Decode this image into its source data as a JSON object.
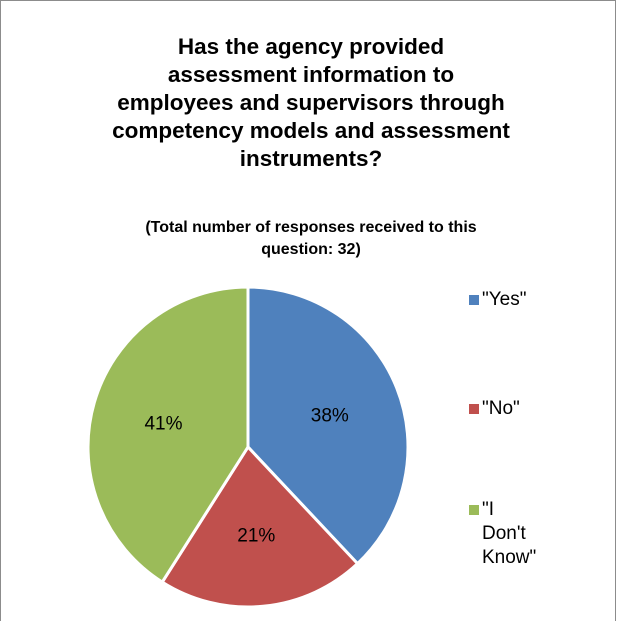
{
  "chart_data": {
    "type": "pie",
    "title": "Has the agency provided\nassessment information to\nemployees and supervisors through\ncompetency models and assessment\ninstruments?",
    "subtitle": "(Total number of responses received to this\nquestion:  32)",
    "categories": [
      "\"Yes\"",
      "\"No\"",
      "\"I Don't\nKnow\""
    ],
    "values": [
      38,
      21,
      41
    ],
    "labels": [
      "38%",
      "21%",
      "41%"
    ],
    "colors": [
      "#4F81BD",
      "#C0504D",
      "#9BBB59"
    ],
    "legend_position": "right"
  }
}
